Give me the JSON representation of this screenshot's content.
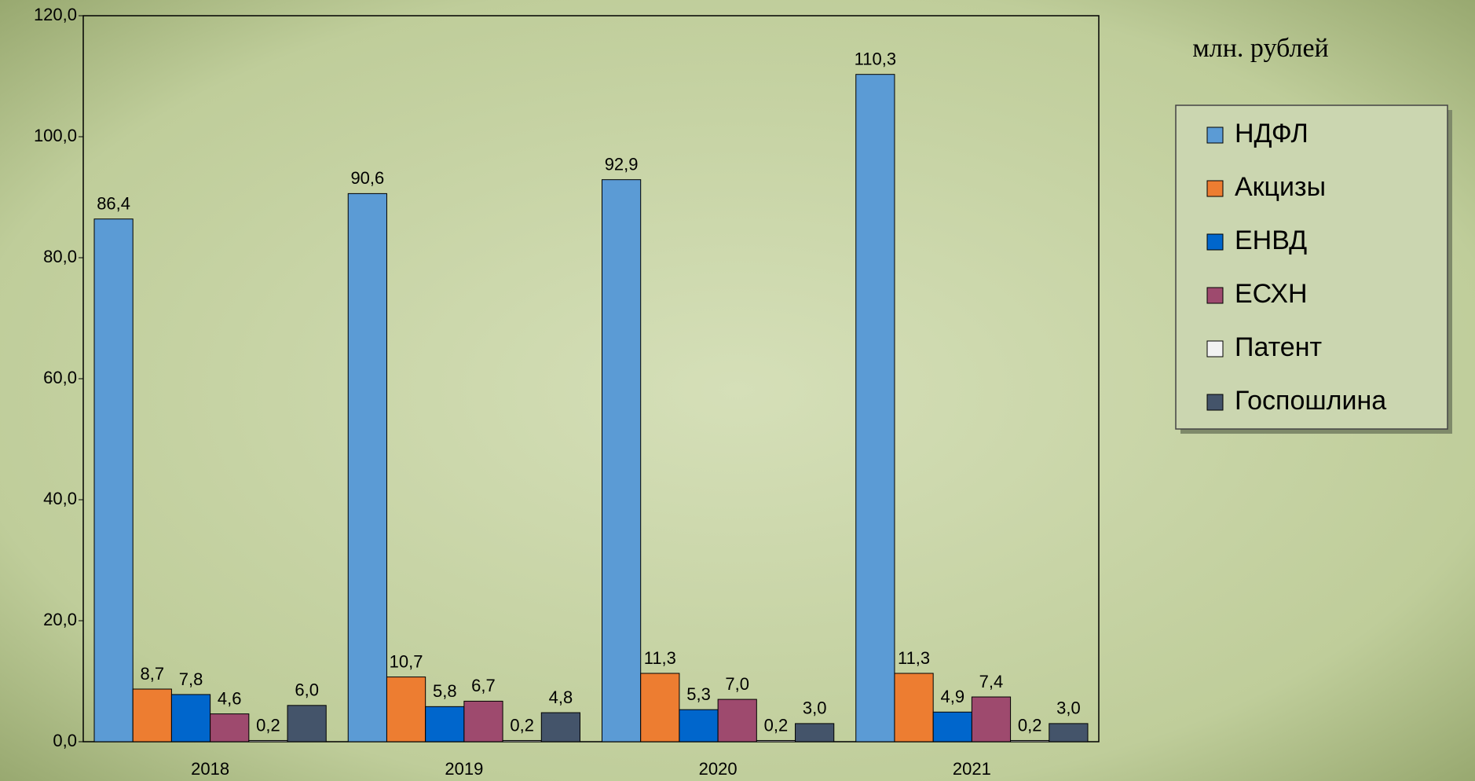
{
  "chart_data": {
    "type": "bar",
    "unit_label": "млн. рублей",
    "categories": [
      "2018",
      "2019",
      "2020",
      "2021"
    ],
    "series": [
      {
        "name": "НДФЛ",
        "color": "#5b9bd5",
        "values": [
          86.4,
          90.6,
          92.9,
          110.3
        ],
        "value_labels": [
          "86,4",
          "90,6",
          "92,9",
          "110,3"
        ]
      },
      {
        "name": "Акцизы",
        "color": "#ed7d31",
        "values": [
          8.7,
          10.7,
          11.3,
          11.3
        ],
        "value_labels": [
          "8,7",
          "10,7",
          "11,3",
          "11,3"
        ]
      },
      {
        "name": "ЕНВД",
        "color": "#0066cc",
        "values": [
          7.8,
          5.8,
          5.3,
          4.9
        ],
        "value_labels": [
          "7,8",
          "5,8",
          "5,3",
          "4,9"
        ]
      },
      {
        "name": "ЕСХН",
        "color": "#9e4a6e",
        "values": [
          4.6,
          6.7,
          7.0,
          7.4
        ],
        "value_labels": [
          "4,6",
          "6,7",
          "7,0",
          "7,4"
        ]
      },
      {
        "name": "Патент",
        "color": "#f2f2f2",
        "values": [
          0.2,
          0.2,
          0.2,
          0.2
        ],
        "value_labels": [
          "0,2",
          "0,2",
          "0,2",
          "0,2"
        ]
      },
      {
        "name": "Госпошлина",
        "color": "#44546a",
        "values": [
          6.0,
          4.8,
          3.0,
          3.0
        ],
        "value_labels": [
          "6,0",
          "4,8",
          "3,0",
          "3,0"
        ]
      }
    ],
    "ylim": [
      0,
      120
    ],
    "yticks": [
      {
        "value": 0,
        "label": "0,0"
      },
      {
        "value": 20,
        "label": "20,0"
      },
      {
        "value": 40,
        "label": "40,0"
      },
      {
        "value": 60,
        "label": "60,0"
      },
      {
        "value": 80,
        "label": "80,0"
      },
      {
        "value": 100,
        "label": "100,0"
      },
      {
        "value": 120,
        "label": "120,0"
      }
    ],
    "legend": "right"
  }
}
